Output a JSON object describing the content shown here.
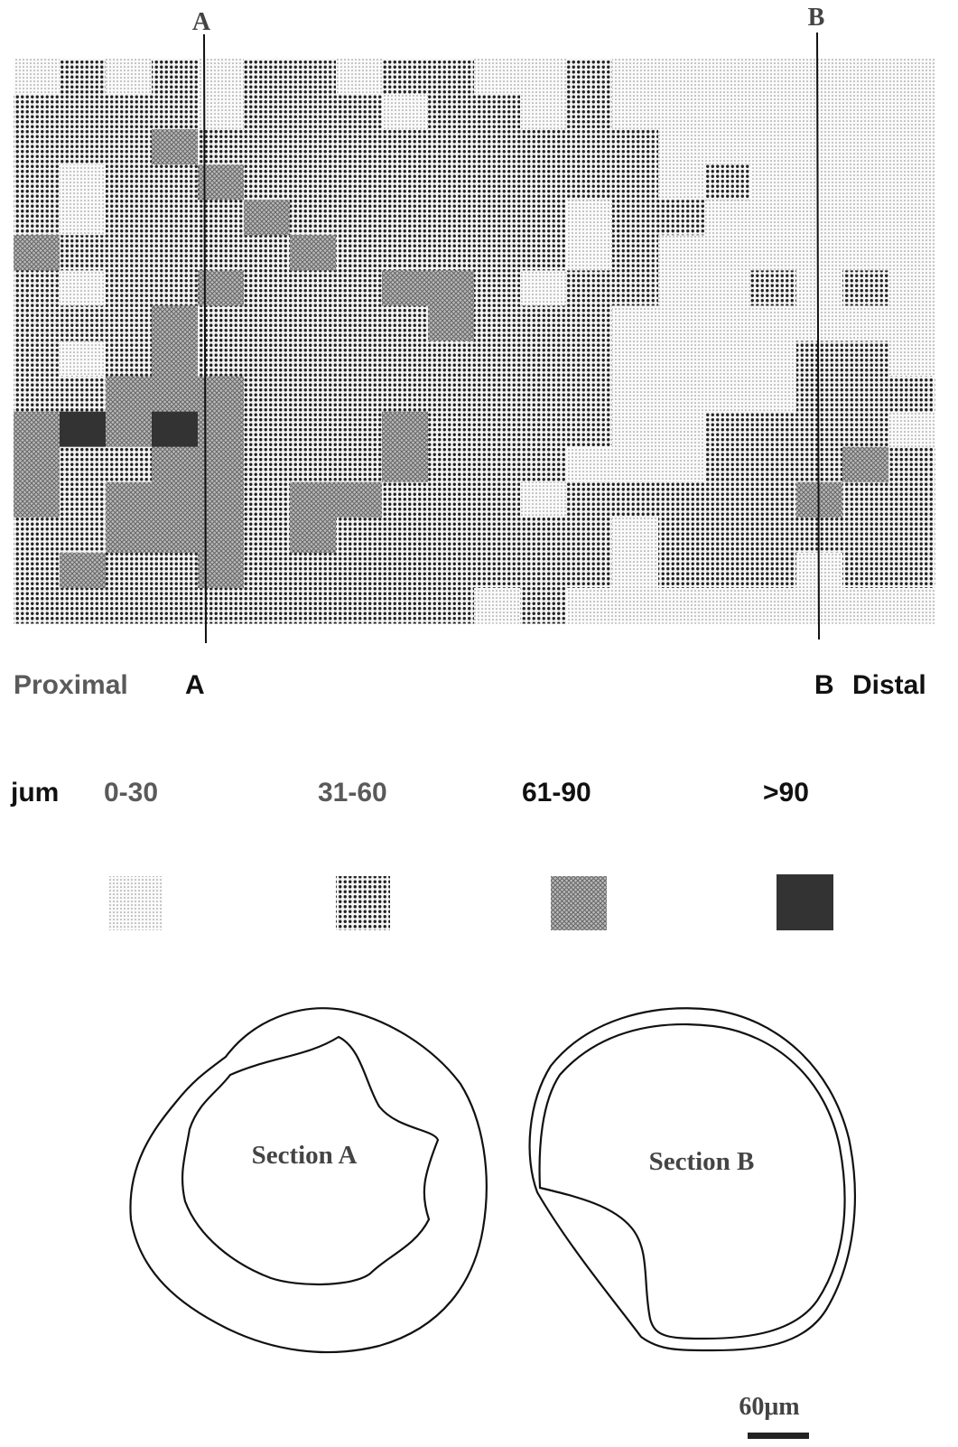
{
  "map": {
    "top_labels": [
      "A",
      "B"
    ],
    "levels": [
      [
        0,
        1,
        0,
        1,
        0,
        1,
        1,
        0,
        1,
        1,
        0,
        0,
        1,
        0,
        0,
        0,
        0,
        0,
        0,
        0
      ],
      [
        1,
        1,
        1,
        1,
        0,
        1,
        1,
        1,
        0,
        1,
        1,
        0,
        1,
        0,
        0,
        0,
        0,
        0,
        0,
        0
      ],
      [
        1,
        1,
        1,
        2,
        1,
        1,
        1,
        1,
        1,
        1,
        1,
        1,
        1,
        1,
        0,
        0,
        0,
        0,
        0,
        0
      ],
      [
        1,
        0,
        1,
        1,
        2,
        1,
        1,
        1,
        1,
        1,
        1,
        1,
        1,
        1,
        0,
        1,
        0,
        0,
        0,
        0
      ],
      [
        1,
        0,
        1,
        1,
        1,
        2,
        1,
        1,
        1,
        1,
        1,
        1,
        0,
        1,
        1,
        0,
        0,
        0,
        0,
        0
      ],
      [
        2,
        1,
        1,
        1,
        1,
        1,
        2,
        1,
        1,
        1,
        1,
        1,
        0,
        1,
        0,
        0,
        0,
        0,
        0,
        0
      ],
      [
        1,
        0,
        1,
        1,
        2,
        1,
        1,
        1,
        2,
        2,
        1,
        0,
        1,
        1,
        0,
        0,
        1,
        0,
        1,
        0
      ],
      [
        1,
        1,
        1,
        2,
        1,
        1,
        1,
        1,
        1,
        2,
        1,
        1,
        1,
        0,
        0,
        0,
        0,
        0,
        0,
        0
      ],
      [
        1,
        0,
        1,
        2,
        1,
        1,
        1,
        1,
        1,
        1,
        1,
        1,
        1,
        0,
        0,
        0,
        0,
        1,
        1,
        0
      ],
      [
        1,
        1,
        2,
        2,
        2,
        1,
        1,
        1,
        1,
        1,
        1,
        1,
        1,
        0,
        0,
        0,
        0,
        1,
        1,
        1
      ],
      [
        2,
        3,
        2,
        3,
        2,
        1,
        1,
        1,
        2,
        1,
        1,
        1,
        1,
        0,
        0,
        1,
        1,
        1,
        1,
        0
      ],
      [
        2,
        1,
        1,
        2,
        2,
        1,
        1,
        1,
        2,
        1,
        1,
        1,
        0,
        0,
        0,
        1,
        1,
        1,
        2,
        1
      ],
      [
        2,
        1,
        2,
        2,
        2,
        1,
        2,
        2,
        1,
        1,
        1,
        0,
        1,
        1,
        1,
        1,
        1,
        2,
        1,
        1
      ],
      [
        1,
        1,
        2,
        2,
        2,
        1,
        2,
        1,
        1,
        1,
        1,
        1,
        1,
        0,
        1,
        1,
        1,
        1,
        1,
        1
      ],
      [
        1,
        2,
        1,
        1,
        2,
        1,
        1,
        1,
        1,
        1,
        1,
        1,
        1,
        0,
        1,
        1,
        1,
        0,
        1,
        1
      ],
      [
        1,
        1,
        1,
        1,
        1,
        1,
        1,
        1,
        1,
        1,
        0,
        1,
        0,
        0,
        0,
        0,
        0,
        0,
        0,
        0
      ]
    ]
  },
  "axis": {
    "proximal": "Proximal",
    "a": "A",
    "b": "B",
    "distal": "Distal"
  },
  "legend": {
    "unit": "jum",
    "items": [
      "0-30",
      "31-60",
      "61-90",
      ">90"
    ]
  },
  "sections": [
    "Section A",
    "Section B"
  ],
  "scale_bar": "60μm"
}
